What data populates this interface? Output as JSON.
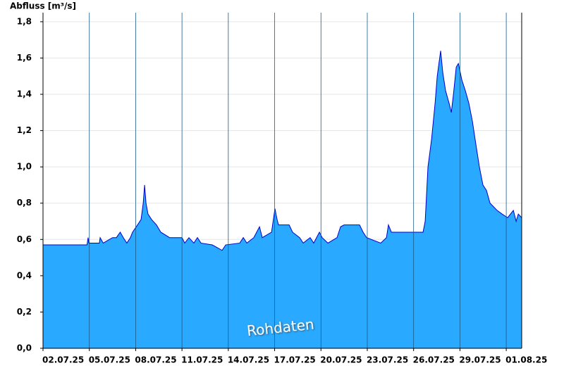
{
  "chart_data": {
    "type": "area",
    "y_label": "Abfluss [m³/s]",
    "annotation": "Rohdaten",
    "color": "#29a9ff",
    "line_color": "#0000cc",
    "xlim": [
      0,
      31
    ],
    "ylim": [
      0,
      1.85
    ],
    "xticks": [
      {
        "value": 0,
        "label": "02.07.25"
      },
      {
        "value": 3,
        "label": "05.07.25"
      },
      {
        "value": 6,
        "label": "08.07.25"
      },
      {
        "value": 9,
        "label": "11.07.25"
      },
      {
        "value": 12,
        "label": "14.07.25"
      },
      {
        "value": 15,
        "label": "17.07.25"
      },
      {
        "value": 18,
        "label": "20.07.25"
      },
      {
        "value": 21,
        "label": "23.07.25"
      },
      {
        "value": 24,
        "label": "26.07.25"
      },
      {
        "value": 27,
        "label": "29.07.25"
      },
      {
        "value": 30,
        "label": "01.08.25"
      }
    ],
    "yticks": [
      {
        "value": 0,
        "label": "0,0"
      },
      {
        "value": 0.2,
        "label": "0,2"
      },
      {
        "value": 0.4,
        "label": "0,4"
      },
      {
        "value": 0.6,
        "label": "0,6"
      },
      {
        "value": 0.8,
        "label": "0,8"
      },
      {
        "value": 1.0,
        "label": "1,0"
      },
      {
        "value": 1.2,
        "label": "1,2"
      },
      {
        "value": 1.4,
        "label": "1,4"
      },
      {
        "value": 1.6,
        "label": "1,6"
      },
      {
        "value": 1.8,
        "label": "1,8"
      }
    ],
    "grid": true,
    "x": [
      0,
      2.85,
      2.92,
      2.97,
      3.65,
      3.7,
      3.9,
      4.5,
      4.75,
      5.0,
      5.2,
      5.43,
      5.66,
      5.8,
      6.12,
      6.35,
      6.49,
      6.58,
      6.67,
      6.8,
      7.03,
      7.35,
      7.63,
      8.2,
      9.0,
      9.18,
      9.45,
      9.77,
      10.0,
      10.23,
      10.96,
      11.6,
      11.83,
      12.74,
      12.97,
      13.2,
      13.65,
      14.02,
      14.2,
      14.8,
      15.02,
      15.16,
      15.25,
      15.94,
      16.16,
      16.62,
      16.85,
      17.3,
      17.53,
      17.9,
      18.08,
      18.45,
      19.04,
      19.27,
      19.5,
      20.5,
      20.73,
      20.96,
      21.87,
      22.24,
      22.37,
      22.56,
      24.61,
      24.75,
      24.93,
      25.16,
      25.39,
      25.53,
      25.75,
      25.89,
      26.07,
      26.3,
      26.44,
      26.58,
      26.76,
      26.9,
      27.12,
      27.35,
      27.58,
      27.81,
      28.04,
      28.26,
      28.49,
      28.72,
      28.95,
      29.18,
      29.41,
      29.73,
      30.09,
      30.46,
      30.64,
      30.78,
      31
    ],
    "values": [
      0.57,
      0.57,
      0.61,
      0.58,
      0.58,
      0.61,
      0.58,
      0.61,
      0.61,
      0.64,
      0.61,
      0.58,
      0.61,
      0.64,
      0.68,
      0.71,
      0.8,
      0.9,
      0.8,
      0.74,
      0.71,
      0.68,
      0.64,
      0.61,
      0.61,
      0.58,
      0.61,
      0.58,
      0.61,
      0.58,
      0.57,
      0.54,
      0.57,
      0.58,
      0.61,
      0.58,
      0.61,
      0.67,
      0.61,
      0.64,
      0.77,
      0.71,
      0.68,
      0.68,
      0.64,
      0.61,
      0.58,
      0.61,
      0.58,
      0.64,
      0.61,
      0.58,
      0.61,
      0.67,
      0.68,
      0.68,
      0.64,
      0.61,
      0.58,
      0.61,
      0.68,
      0.64,
      0.64,
      0.7,
      1.0,
      1.15,
      1.35,
      1.5,
      1.64,
      1.52,
      1.42,
      1.35,
      1.3,
      1.4,
      1.55,
      1.57,
      1.48,
      1.42,
      1.35,
      1.25,
      1.12,
      1.0,
      0.9,
      0.87,
      0.8,
      0.78,
      0.76,
      0.74,
      0.72,
      0.76,
      0.7,
      0.74,
      0.72
    ]
  }
}
